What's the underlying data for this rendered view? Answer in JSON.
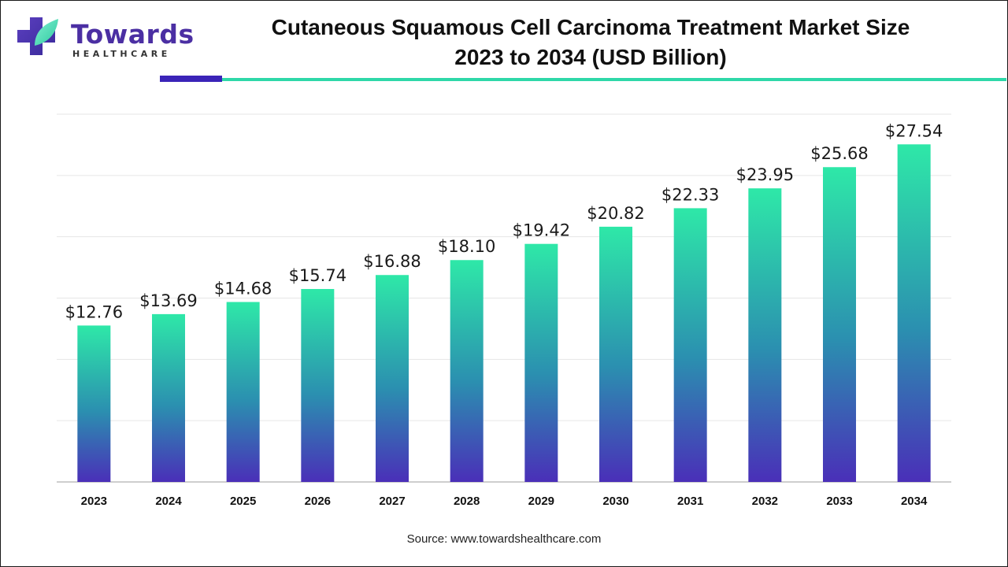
{
  "logo": {
    "word": "Towards",
    "sub": "HEALTHCARE"
  },
  "title": {
    "line1": "Cutaneous Squamous Cell Carcinoma Treatment Market Size",
    "line2": "2023 to 2034 (USD Billion)"
  },
  "source": "Source: www.towardshealthcare.com",
  "colors": {
    "bar_top": "#2ee8a8",
    "bar_mid": "#2b8fb0",
    "bar_bottom": "#4a2fb8",
    "accent_dark": "#3b24b8",
    "accent_light": "#2ed8a8",
    "grid": "#e6e6e6"
  },
  "chart_data": {
    "type": "bar",
    "categories": [
      "2023",
      "2024",
      "2025",
      "2026",
      "2027",
      "2028",
      "2029",
      "2030",
      "2031",
      "2032",
      "2033",
      "2034"
    ],
    "values": [
      12.76,
      13.69,
      14.68,
      15.74,
      16.88,
      18.1,
      19.42,
      20.82,
      22.33,
      23.95,
      25.68,
      27.54
    ],
    "value_labels": [
      "$12.76",
      "$13.69",
      "$14.68",
      "$15.74",
      "$16.88",
      "$18.10",
      "$19.42",
      "$20.82",
      "$22.33",
      "$23.95",
      "$25.68",
      "$27.54"
    ],
    "ylim": [
      0,
      30
    ],
    "grid": true,
    "legend": "none"
  }
}
